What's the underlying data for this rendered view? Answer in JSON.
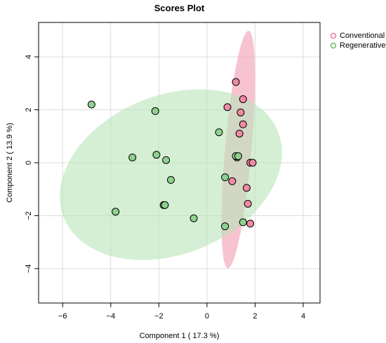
{
  "chart_data": {
    "type": "scatter",
    "title": "Scores Plot",
    "xlabel": "Component 1 ( 17.3 %)",
    "ylabel": "Component 2 ( 13.9 %)",
    "xlim": [
      -7,
      4.7
    ],
    "ylim": [
      -5.3,
      5.3
    ],
    "xticks": [
      -6,
      -4,
      -2,
      0,
      2,
      4
    ],
    "yticks": [
      -4,
      -2,
      0,
      2,
      4
    ],
    "xtick_labels": [
      "−6",
      "−4",
      "−2",
      "0",
      "2",
      "4"
    ],
    "ytick_labels": [
      "−4",
      "−2",
      "0",
      "2",
      "4"
    ],
    "grid": true,
    "legend_position": "top-right",
    "series": [
      {
        "name": "Conventional",
        "color": "#e8628a",
        "fill": "#f08aa4",
        "ellipse": {
          "cx": 1.3,
          "cy": 0.5,
          "rx": 0.55,
          "ry": 4.5,
          "angle_deg": 5,
          "fill": "#f4a9bd",
          "opacity": 0.7
        },
        "points": [
          {
            "x": 1.2,
            "y": 3.05
          },
          {
            "x": 0.85,
            "y": 2.1
          },
          {
            "x": 1.5,
            "y": 2.4
          },
          {
            "x": 1.4,
            "y": 1.9
          },
          {
            "x": 1.5,
            "y": 1.45
          },
          {
            "x": 1.35,
            "y": 1.1
          },
          {
            "x": 1.8,
            "y": 0.0
          },
          {
            "x": 1.9,
            "y": 0.0
          },
          {
            "x": 1.05,
            "y": -0.7
          },
          {
            "x": 1.65,
            "y": -0.95
          },
          {
            "x": 1.7,
            "y": -1.55
          },
          {
            "x": 1.8,
            "y": -2.3
          },
          {
            "x": 1.25,
            "y": 0.2
          }
        ]
      },
      {
        "name": "Regenerative",
        "color": "#4caf50",
        "fill": "#8fd18f",
        "ellipse": {
          "cx": -1.5,
          "cy": -0.45,
          "rx": 4.8,
          "ry": 3.0,
          "angle_deg": -22,
          "fill": "#b9e4b9",
          "opacity": 0.6
        },
        "points": [
          {
            "x": -4.8,
            "y": 2.2
          },
          {
            "x": -2.15,
            "y": 1.95
          },
          {
            "x": 0.5,
            "y": 1.15
          },
          {
            "x": -3.1,
            "y": 0.2
          },
          {
            "x": -2.1,
            "y": 0.3
          },
          {
            "x": -1.7,
            "y": 0.1
          },
          {
            "x": 1.2,
            "y": 0.25
          },
          {
            "x": 1.3,
            "y": 0.25
          },
          {
            "x": -1.5,
            "y": -0.65
          },
          {
            "x": 0.75,
            "y": -0.55
          },
          {
            "x": -3.8,
            "y": -1.85
          },
          {
            "x": -1.8,
            "y": -1.6
          },
          {
            "x": -1.75,
            "y": -1.6
          },
          {
            "x": -0.55,
            "y": -2.1
          },
          {
            "x": 0.75,
            "y": -2.4
          },
          {
            "x": 1.5,
            "y": -2.25
          }
        ]
      }
    ]
  }
}
